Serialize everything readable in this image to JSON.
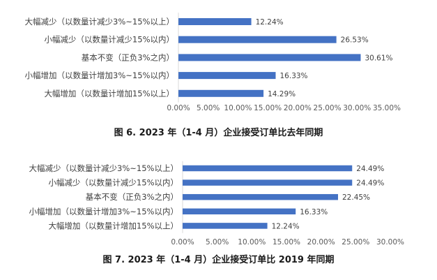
{
  "chart_data": [
    {
      "type": "bar",
      "orientation": "horizontal",
      "title": "图 6. 2023 年（1-4 月）企业接受订单比去年同期",
      "categories": [
        "大幅减少（以数量计减少3%~15%以上）",
        "小幅减少（以数量计减少15%以内）",
        "基本不变（正负3%之内）",
        "小幅增加（以数量计增加3%~15%以内）",
        "大幅增加（以数量计增加15%以上）"
      ],
      "values": [
        12.24,
        26.53,
        30.61,
        16.33,
        14.29
      ],
      "value_labels": [
        "12.24%",
        "26.53%",
        "30.61%",
        "16.33%",
        "14.29%"
      ],
      "xlim": [
        0,
        35
      ],
      "x_ticks": [
        0,
        5,
        10,
        15,
        20,
        25,
        30,
        35
      ],
      "x_tick_labels": [
        "0.00%",
        "5.00%",
        "10.00%",
        "15.00%",
        "20.00%",
        "25.00%",
        "30.00%",
        "35.00%"
      ],
      "grid": false,
      "color": "#4472c4"
    },
    {
      "type": "bar",
      "orientation": "horizontal",
      "title": "图 7.  2023 年（1-4 月）企业接受订单比 2019 年同期",
      "categories": [
        "大幅减少（以数量计减少3%~15%以上）",
        "小幅减少（以数量计减少15%以内）",
        "基本不变（正负3%之内）",
        "小幅增加（以数量计增加3%~15%以内）",
        "大幅增加（以数量计增加15%以上）"
      ],
      "values": [
        24.49,
        24.49,
        22.45,
        16.33,
        12.24
      ],
      "value_labels": [
        "24.49%",
        "24.49%",
        "22.45%",
        "16.33%",
        "12.24%"
      ],
      "xlim": [
        0,
        30
      ],
      "x_ticks": [
        0,
        5,
        10,
        15,
        20,
        25,
        30
      ],
      "x_tick_labels": [
        "0.00%",
        "5.00%",
        "10.00%",
        "15.00%",
        "20.00%",
        "25.00%",
        "30.00%"
      ],
      "grid": false,
      "color": "#4472c4"
    }
  ]
}
